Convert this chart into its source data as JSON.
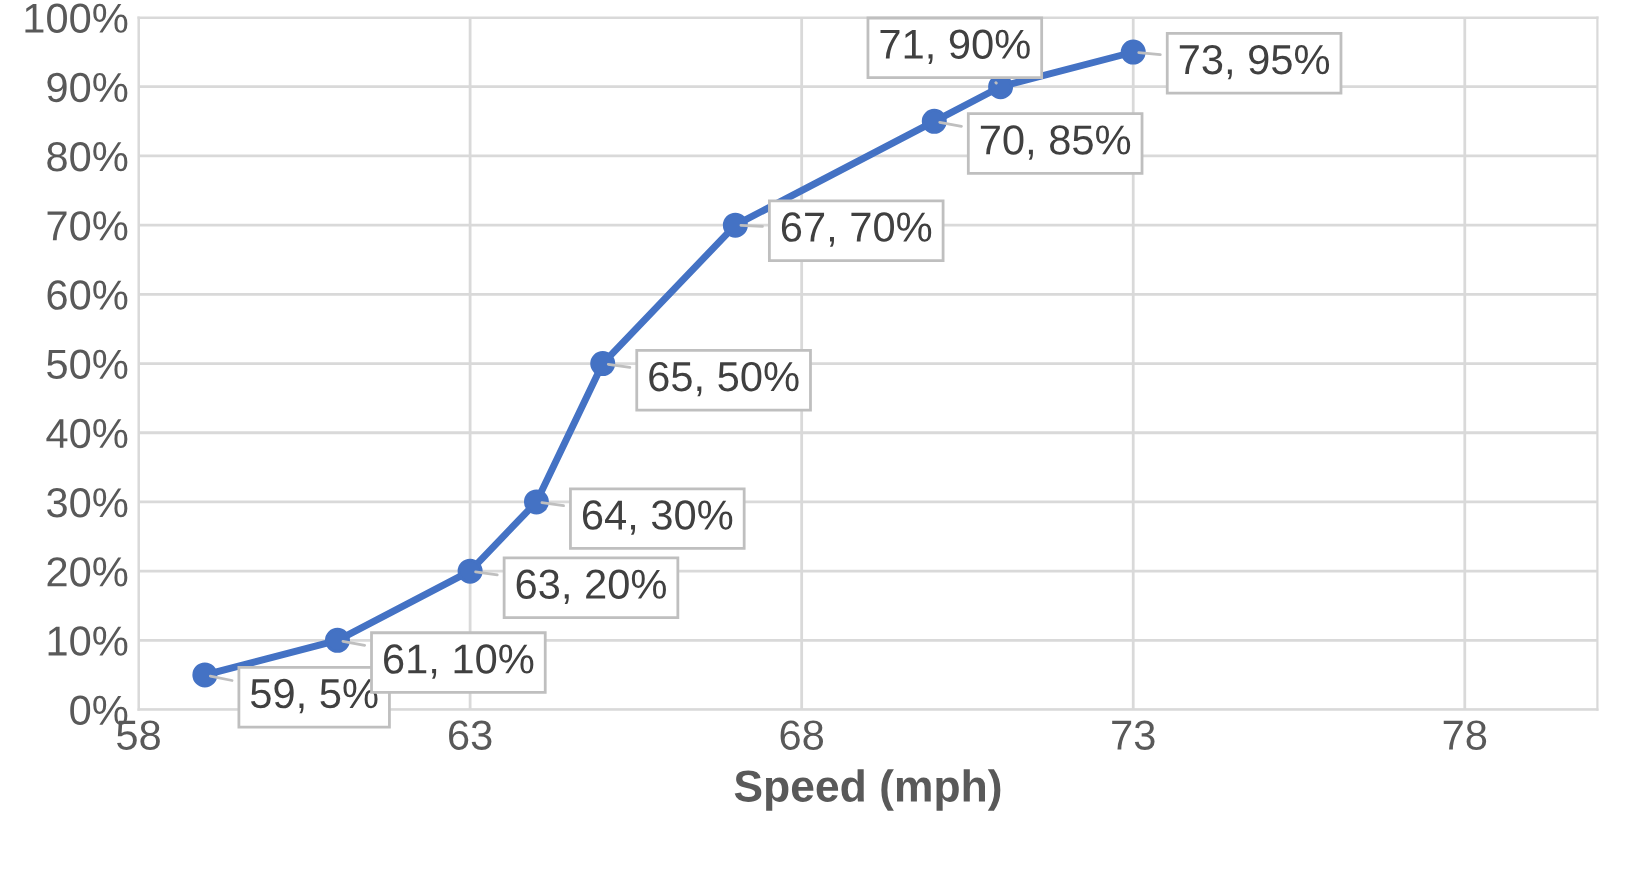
{
  "chart_data": {
    "type": "line",
    "xlabel": "Speed (mph)",
    "x": [
      59,
      61,
      63,
      64,
      65,
      67,
      70,
      71,
      73
    ],
    "series": [
      {
        "color": "#4472c4",
        "values": [
          5,
          10,
          20,
          30,
          50,
          70,
          85,
          90,
          95
        ],
        "value_labels": [
          "59, 5%",
          "61, 10%",
          "63, 20%",
          "64, 30%",
          "65, 50%",
          "67, 70%",
          "70, 85%",
          "71, 90%",
          "73, 95%"
        ]
      }
    ],
    "xlim": [
      58,
      80
    ],
    "xticks": [
      58,
      63,
      68,
      73,
      78
    ],
    "ylim": [
      0,
      100
    ],
    "yticks": [
      {
        "value": 0,
        "label": "0%"
      },
      {
        "value": 10,
        "label": "10%"
      },
      {
        "value": 20,
        "label": "20%"
      },
      {
        "value": 30,
        "label": "30%"
      },
      {
        "value": 40,
        "label": "40%"
      },
      {
        "value": 50,
        "label": "50%"
      },
      {
        "value": 60,
        "label": "60%"
      },
      {
        "value": 70,
        "label": "70%"
      },
      {
        "value": 80,
        "label": "80%"
      },
      {
        "value": 90,
        "label": "90%"
      },
      {
        "value": 100,
        "label": "100%"
      }
    ],
    "grid": true,
    "marker": "circle",
    "line_style": "solid"
  }
}
